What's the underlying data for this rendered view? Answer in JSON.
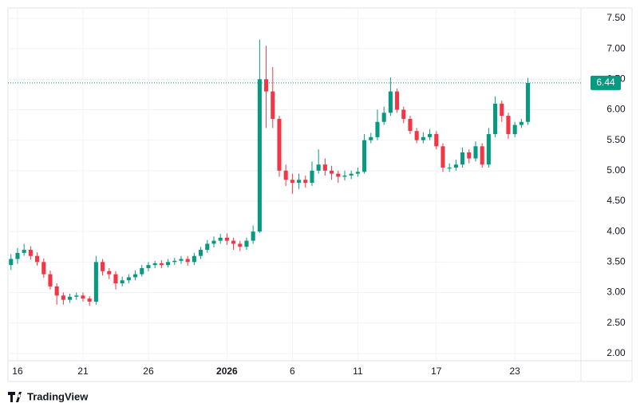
{
  "chart_data": {
    "type": "candlestick",
    "brand": "TradingView",
    "up_color": "#089981",
    "down_color": "#f23645",
    "grid": true,
    "xlim": [
      -0.73,
      43.05
    ],
    "ylim": [
      1.88,
      7.67
    ],
    "xticks": [
      {
        "value": 0,
        "label": "16"
      },
      {
        "value": 5,
        "label": "21"
      },
      {
        "value": 10,
        "label": "26"
      },
      {
        "value": 16,
        "label": "2026"
      },
      {
        "value": 21,
        "label": "6"
      },
      {
        "value": 26,
        "label": "11"
      },
      {
        "value": 32,
        "label": "17"
      },
      {
        "value": 38,
        "label": "23"
      }
    ],
    "yticks": [
      {
        "value": 2,
        "label": "2.00"
      },
      {
        "value": 2.5,
        "label": "2.50"
      },
      {
        "value": 3,
        "label": "3.00"
      },
      {
        "value": 3.5,
        "label": "3.50"
      },
      {
        "value": 4,
        "label": "4.00"
      },
      {
        "value": 4.5,
        "label": "4.50"
      },
      {
        "value": 5,
        "label": "5.00"
      },
      {
        "value": 5.5,
        "label": "5.50"
      },
      {
        "value": 6,
        "label": "6.00"
      },
      {
        "value": 6.5,
        "label": "6.50"
      },
      {
        "value": 7,
        "label": "7.00"
      },
      {
        "value": 7.5,
        "label": "7.50"
      }
    ],
    "x": [
      -0.5,
      0,
      0.5,
      1,
      1.5,
      2,
      2.5,
      3,
      3.5,
      4,
      4.5,
      5,
      5.5,
      6,
      6.5,
      7,
      7.5,
      8,
      8.5,
      9,
      9.5,
      10,
      10.5,
      11,
      11.5,
      12,
      12.5,
      13,
      13.5,
      14,
      14.5,
      15,
      15.5,
      16,
      16.5,
      17,
      17.5,
      18,
      18.5,
      19,
      19.5,
      20,
      20.5,
      21,
      21.5,
      22,
      22.5,
      23,
      23.5,
      24,
      24.5,
      25,
      25.5,
      26,
      26.5,
      27,
      27.5,
      28,
      28.5,
      29,
      29.5,
      30,
      30.5,
      31,
      31.5,
      32,
      32.5,
      33,
      33.5,
      34,
      34.5,
      35,
      35.5,
      36,
      36.5,
      37,
      37.5,
      38,
      38.5,
      39
    ],
    "open": [
      3.45,
      3.55,
      3.65,
      3.7,
      3.6,
      3.5,
      3.3,
      3.1,
      2.95,
      2.88,
      2.93,
      2.95,
      2.9,
      2.85,
      3.5,
      3.35,
      3.3,
      3.15,
      3.2,
      3.25,
      3.3,
      3.4,
      3.45,
      3.48,
      3.45,
      3.5,
      3.52,
      3.55,
      3.5,
      3.6,
      3.7,
      3.8,
      3.85,
      3.9,
      3.85,
      3.8,
      3.75,
      3.85,
      4.0,
      6.5,
      6.3,
      5.85,
      5.0,
      4.85,
      4.8,
      4.85,
      4.8,
      5.0,
      5.1,
      5.0,
      4.95,
      4.9,
      4.92,
      4.95,
      4.98,
      5.5,
      5.55,
      5.8,
      5.95,
      6.3,
      6.0,
      5.85,
      5.65,
      5.5,
      5.55,
      5.6,
      5.4,
      5.05,
      5.05,
      5.1,
      5.3,
      5.2,
      5.4,
      5.1,
      5.6,
      6.1,
      5.9,
      5.6,
      5.75,
      5.8
    ],
    "high": [
      3.63,
      3.73,
      3.8,
      3.76,
      3.66,
      3.56,
      3.36,
      3.15,
      3.0,
      2.98,
      3.0,
      3.0,
      2.94,
      3.6,
      3.55,
      3.4,
      3.35,
      3.26,
      3.3,
      3.36,
      3.45,
      3.5,
      3.52,
      3.53,
      3.55,
      3.57,
      3.6,
      3.6,
      3.65,
      3.75,
      3.86,
      3.92,
      3.96,
      3.97,
      3.9,
      3.85,
      3.9,
      4.1,
      7.15,
      7.05,
      6.7,
      5.9,
      5.1,
      4.95,
      4.95,
      4.92,
      5.15,
      5.35,
      5.2,
      5.08,
      5.0,
      5.0,
      5.0,
      5.05,
      5.6,
      5.62,
      6.0,
      6.05,
      6.53,
      6.35,
      6.05,
      5.9,
      5.7,
      5.63,
      5.68,
      5.65,
      5.45,
      5.12,
      5.18,
      5.38,
      5.35,
      5.48,
      5.45,
      5.7,
      6.22,
      6.15,
      5.95,
      5.8,
      5.85,
      6.52
    ],
    "low": [
      3.37,
      3.47,
      3.6,
      3.54,
      3.44,
      3.24,
      3.05,
      2.8,
      2.8,
      2.83,
      2.88,
      2.85,
      2.78,
      2.8,
      3.28,
      3.22,
      3.05,
      3.1,
      3.15,
      3.2,
      3.26,
      3.35,
      3.4,
      3.4,
      3.41,
      3.45,
      3.47,
      3.44,
      3.45,
      3.55,
      3.65,
      3.74,
      3.8,
      3.78,
      3.7,
      3.68,
      3.7,
      3.8,
      3.98,
      5.7,
      5.7,
      4.9,
      4.75,
      4.62,
      4.7,
      4.72,
      4.75,
      4.95,
      4.92,
      4.85,
      4.8,
      4.84,
      4.86,
      4.9,
      4.95,
      5.45,
      5.5,
      5.75,
      5.9,
      5.95,
      5.78,
      5.6,
      5.45,
      5.45,
      5.5,
      5.35,
      4.98,
      4.98,
      5.0,
      5.05,
      5.12,
      5.15,
      5.05,
      5.05,
      5.55,
      5.8,
      5.52,
      5.55,
      5.7,
      5.75
    ],
    "close": [
      3.55,
      3.65,
      3.7,
      3.6,
      3.5,
      3.3,
      3.1,
      2.95,
      2.88,
      2.93,
      2.95,
      2.9,
      2.85,
      3.5,
      3.35,
      3.3,
      3.15,
      3.2,
      3.25,
      3.3,
      3.4,
      3.45,
      3.48,
      3.45,
      3.5,
      3.52,
      3.55,
      3.5,
      3.6,
      3.7,
      3.8,
      3.85,
      3.9,
      3.85,
      3.8,
      3.75,
      3.85,
      4.0,
      6.5,
      6.3,
      5.85,
      5.0,
      4.85,
      4.8,
      4.85,
      4.8,
      5.0,
      5.1,
      5.0,
      4.95,
      4.9,
      4.92,
      4.95,
      4.98,
      5.5,
      5.55,
      5.8,
      5.95,
      6.3,
      6.0,
      5.85,
      5.65,
      5.5,
      5.55,
      5.6,
      5.4,
      5.05,
      5.05,
      5.1,
      5.3,
      5.2,
      5.4,
      5.1,
      5.6,
      6.1,
      5.9,
      5.6,
      5.75,
      5.8,
      6.44
    ]
  }
}
